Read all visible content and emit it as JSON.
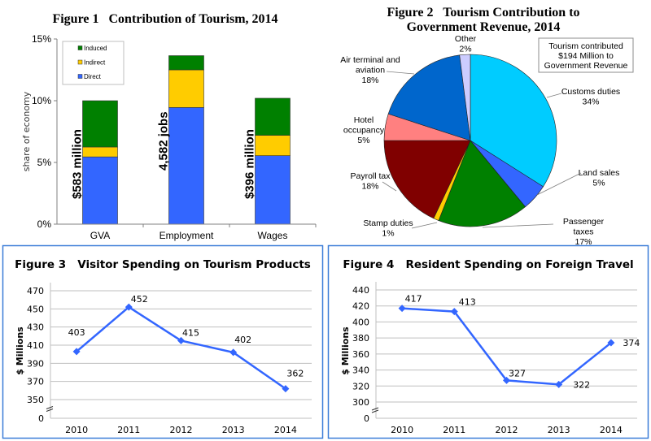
{
  "chart_data": [
    {
      "id": "fig1",
      "type": "bar",
      "stacked": true,
      "title": "Figure 1   Contribution of Tourism, 2014",
      "xlabel": "",
      "ylabel": "share of economy",
      "ylim": [
        0,
        15
      ],
      "yticks": [
        "0%",
        "5%",
        "10%",
        "15%"
      ],
      "ytick_values": [
        0,
        5,
        10,
        15
      ],
      "categories": [
        "GVA",
        "Employment",
        "Wages"
      ],
      "series": [
        {
          "name": "Direct",
          "color": "#3366FF",
          "values": [
            5.45,
            9.45,
            5.55
          ]
        },
        {
          "name": "Indirect",
          "color": "#FFCC00",
          "values": [
            0.8,
            3.05,
            1.65
          ]
        },
        {
          "name": "Induced",
          "color": "#008000",
          "values": [
            3.75,
            1.15,
            3.0
          ]
        }
      ],
      "legend": [
        "Induced",
        "Indirect",
        "Direct"
      ],
      "legend_position": "top-left",
      "bar_annotations": [
        "$583 million",
        "4,582 jobs",
        "$396 million"
      ],
      "grid": false
    },
    {
      "id": "fig2",
      "type": "pie",
      "title_lines": [
        "Figure 2   Tourism Contribution to",
        "Government Revenue, 2014"
      ],
      "annotation_lines": [
        "Tourism contributed",
        "$194 Million to",
        "Government Revenue"
      ],
      "slices": [
        {
          "label": "Customs duties",
          "pct_label": "34%",
          "value": 34,
          "color": "#00CCFF"
        },
        {
          "label": "Land sales",
          "pct_label": "5%",
          "value": 5,
          "color": "#3366FF"
        },
        {
          "label": "Passenger taxes",
          "label_lines": [
            "Passenger",
            "taxes"
          ],
          "pct_label": "17%",
          "value": 17,
          "color": "#008000"
        },
        {
          "label": "Stamp duties",
          "pct_label": "1%",
          "value": 1,
          "color": "#FFCC00"
        },
        {
          "label": "Payroll tax",
          "pct_label": "18%",
          "value": 18,
          "color": "#800000"
        },
        {
          "label": "Hotel occupancy",
          "label_lines": [
            "Hotel",
            "occupancy"
          ],
          "pct_label": "5%",
          "value": 5,
          "color": "#FF8080"
        },
        {
          "label": "Air terminal and aviation",
          "label_lines": [
            "Air terminal and",
            "aviation"
          ],
          "pct_label": "18%",
          "value": 18,
          "color": "#0066CC"
        },
        {
          "label": "Other",
          "pct_label": "2%",
          "value": 2,
          "color": "#CCCCFF"
        }
      ]
    },
    {
      "id": "fig3",
      "type": "line",
      "title": "Figure 3   Visitor Spending on Tourism Products",
      "ylabel": "$ Millions",
      "x": [
        "2010",
        "2011",
        "2012",
        "2013",
        "2014"
      ],
      "values": [
        403,
        452,
        415,
        402,
        362
      ],
      "yticks": [
        350,
        370,
        390,
        410,
        430,
        450,
        470
      ],
      "axis_break": true,
      "ybase_label": "0",
      "ylim": [
        350,
        470
      ],
      "color": "#3366FF",
      "grid": true
    },
    {
      "id": "fig4",
      "type": "line",
      "title": "Figure 4   Resident Spending on Foreign Travel",
      "ylabel": "$ Millions",
      "x": [
        "2010",
        "2011",
        "2012",
        "2013",
        "2014"
      ],
      "values": [
        417,
        413,
        327,
        322,
        374
      ],
      "yticks": [
        300,
        320,
        340,
        360,
        380,
        400,
        420,
        440
      ],
      "axis_break": true,
      "ybase_label": "0",
      "ylim": [
        300,
        440
      ],
      "color": "#3366FF",
      "grid": true
    }
  ],
  "colors": {
    "panel_border": "#3B7DD8",
    "gridline": "#BFBFBF",
    "axis": "#808080"
  }
}
